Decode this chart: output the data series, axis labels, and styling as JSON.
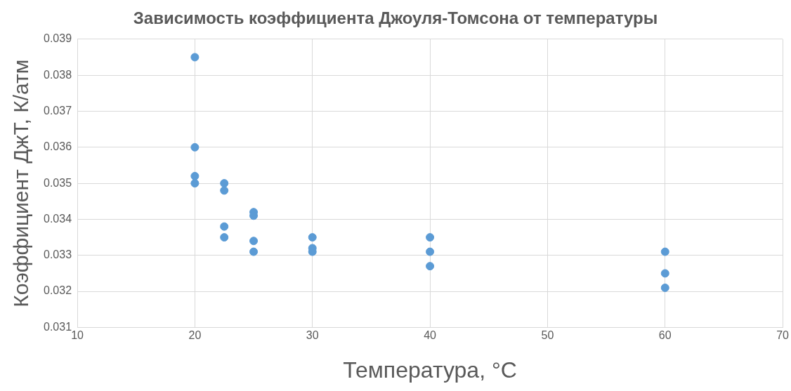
{
  "chart_data": {
    "type": "scatter",
    "title": "Зависимость коэффициента Джоуля-Томсона от температуры",
    "xlabel": "Температура, °C",
    "ylabel": "Коэффициент ДжТ, К/атм",
    "series": [
      {
        "color": "#5b9bd5",
        "x": [
          20,
          20,
          20,
          20,
          22.5,
          22.5,
          22.5,
          22.5,
          25,
          25,
          25,
          25,
          30,
          30,
          30,
          40,
          40,
          40,
          60,
          60,
          60
        ],
        "values": [
          0.0385,
          0.036,
          0.0352,
          0.035,
          0.035,
          0.0348,
          0.0338,
          0.0335,
          0.0342,
          0.0341,
          0.0334,
          0.0331,
          0.0335,
          0.0332,
          0.0331,
          0.0335,
          0.0331,
          0.0327,
          0.0331,
          0.0325,
          0.0321
        ]
      }
    ],
    "xlim": [
      10,
      70
    ],
    "xticks": [
      10,
      20,
      30,
      40,
      50,
      60,
      70
    ],
    "ylim": [
      0.031,
      0.039
    ],
    "yticks": [
      0.031,
      0.032,
      0.033,
      0.034,
      0.035,
      0.036,
      0.037,
      0.038,
      0.039
    ],
    "grid": true,
    "legend": false,
    "marker": "circle"
  }
}
